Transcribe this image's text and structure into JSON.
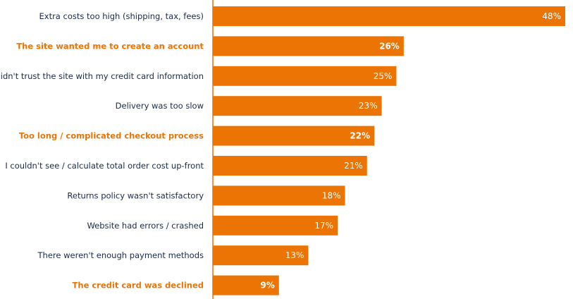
{
  "chart_data": {
    "type": "bar",
    "orientation": "horizontal",
    "title": "",
    "xlabel": "",
    "ylabel": "",
    "xlim": [
      0,
      48
    ],
    "grid": false,
    "legend": "none",
    "categories": [
      "Extra costs too high (shipping, tax, fees)",
      "The site wanted me to create an account",
      "I didn't trust the site with my credit card information",
      "Delivery was too slow",
      "Too long / complicated checkout process",
      "I couldn't see / calculate total order cost up-front",
      "Returns policy wasn't satisfactory",
      "Website had errors / crashed",
      "There weren't enough payment methods",
      "The credit card was declined"
    ],
    "values": [
      48,
      26,
      25,
      23,
      22,
      21,
      18,
      17,
      13,
      9
    ],
    "value_labels": [
      "48%",
      "26%",
      "25%",
      "23%",
      "22%",
      "21%",
      "18%",
      "17%",
      "13%",
      "9%"
    ],
    "highlighted": [
      false,
      true,
      false,
      false,
      true,
      false,
      false,
      false,
      false,
      true
    ],
    "colors": {
      "bar": "#EC7404",
      "label_default": "#1B2A4A",
      "label_highlight": "#EC7404",
      "axis": "#EC7404"
    }
  }
}
